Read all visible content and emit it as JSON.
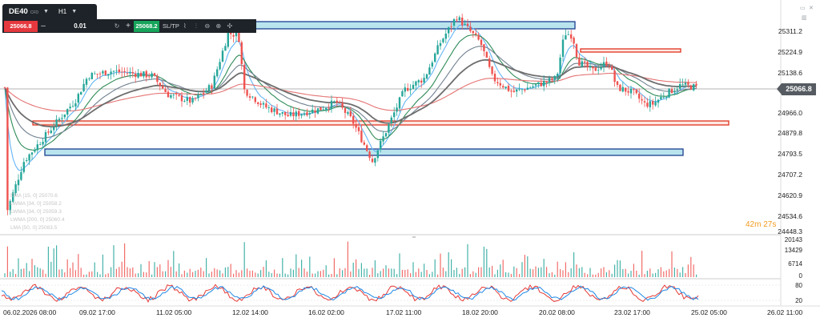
{
  "toolbar": {
    "symbol": "DE40",
    "instrument_type": "CFD",
    "timeframe": "H1",
    "sell_price": "25066.8",
    "minus": "–",
    "quantity": "0.01",
    "plus": "+",
    "buy_price": "25068.2",
    "sltp_label": "SL/TP"
  },
  "price_axis": {
    "ticks": [
      "25311.2",
      "25224.9",
      "25138.6",
      "25052.4",
      "24966.0",
      "24879.8",
      "24793.5",
      "24707.2",
      "24620.9",
      "24534.6",
      "24448.3"
    ],
    "current_price": "25066.8",
    "current_tag_color": "#555b61"
  },
  "countdown": {
    "minutes": "42m",
    "seconds": "27s"
  },
  "time_axis": [
    "06.02.2026 08:00",
    "09.02 17:00",
    "11.02 05:00",
    "12.02 14:00",
    "16.02 02:00",
    "17.02 11:00",
    "18.02 20:00",
    "20.02 08:00",
    "23.02 17:00",
    "25.02 05:00",
    "26.02 11:00"
  ],
  "indicators_legend": [
    "EMA [15, 0] 25070.6",
    "LWMA [34, 0] 25058.2",
    "LWMA [34, 0] 25059.3",
    "LWMA [200, 0] 25060.4",
    "LMA [50, 0] 25083.5"
  ],
  "volume_axis": [
    "20143",
    "13429",
    "6714",
    "0"
  ],
  "stoch_axis": [
    "80",
    "20"
  ],
  "colors": {
    "bull": "#26a69a",
    "bear": "#ef5350",
    "zone_blue_fill": "#b9e4ee",
    "zone_blue_border": "#1b3f8f",
    "zone_red_fill": "#fde7e1",
    "zone_red_border": "#e0321f",
    "countdown": "#f39b20"
  },
  "icons": [
    "chevron-down-icon",
    "refresh-icon",
    "zoom-out-icon",
    "zoom-in-icon",
    "crosshair-icon",
    "line-chart-icon",
    "bar-chart-icon",
    "window-icon",
    "close-icon"
  ]
}
